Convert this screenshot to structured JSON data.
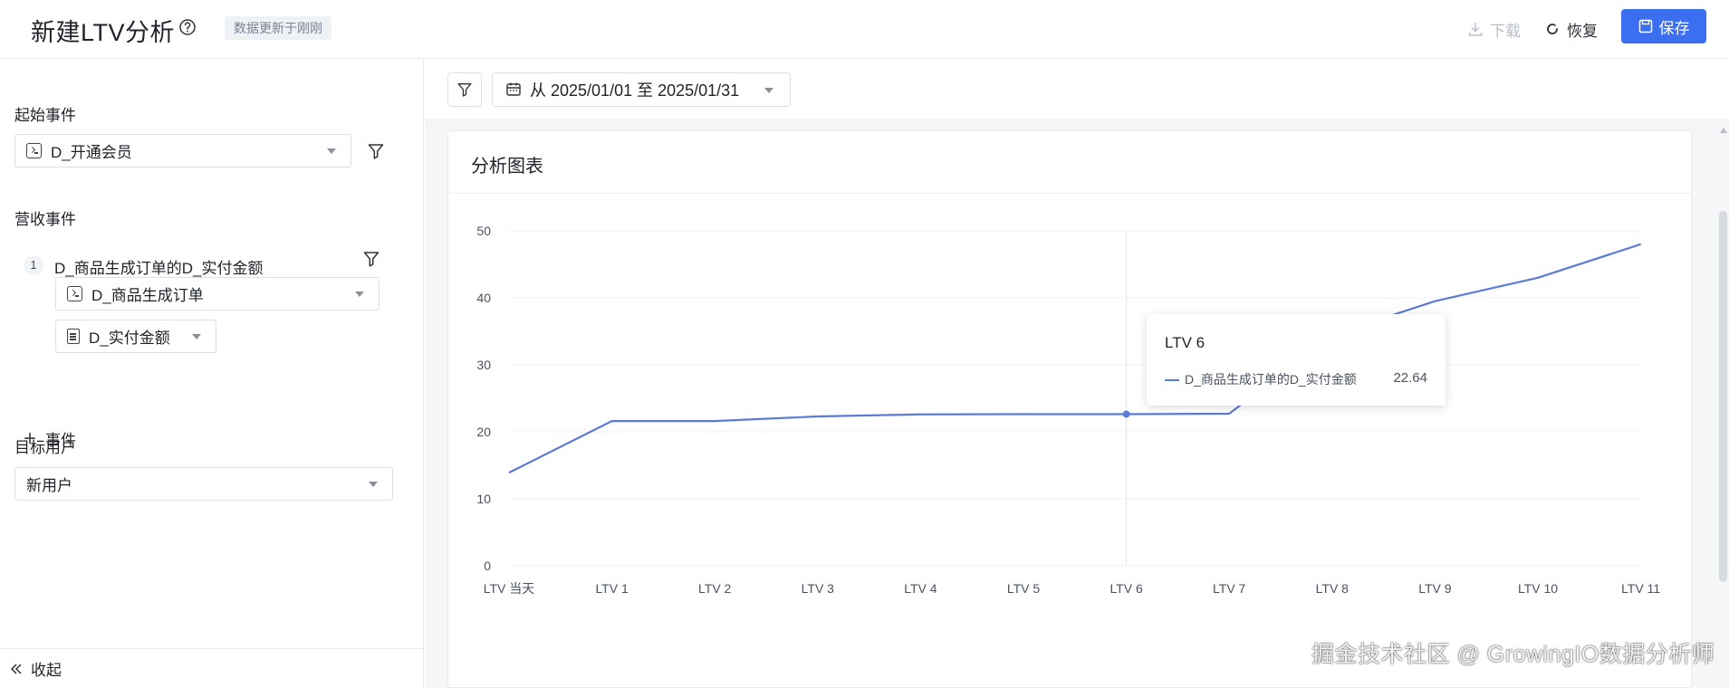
{
  "header": {
    "title": "新建LTV分析",
    "update_badge": "数据更新于刚刚",
    "download_label": "下载",
    "restore_label": "恢复",
    "save_label": "保存"
  },
  "sidebar": {
    "start_event_label": "起始事件",
    "start_event_value": "D_开通会员",
    "revenue_event_label": "营收事件",
    "revenue_metric_index": "1",
    "revenue_metric_name": "D_商品生成订单的D_实付金额",
    "revenue_event_value": "D_商品生成订单",
    "revenue_property_value": "D_实付金额",
    "add_event_label": "事件",
    "target_user_label": "目标用户",
    "target_user_value": "新用户",
    "collapse_label": "收起"
  },
  "toolbar": {
    "date_range": "从 2025/01/01 至 2025/01/31"
  },
  "card": {
    "title": "分析图表"
  },
  "tooltip": {
    "title": "LTV 6",
    "series_name": "D_商品生成订单的D_实付金额",
    "value": "22.64"
  },
  "watermark": "掘金技术社区 @ GrowingIO数据分析师",
  "colors": {
    "accent": "#3b6ff0",
    "series": "#5b7bd5",
    "grid": "#edf0f3"
  },
  "chart_data": {
    "type": "line",
    "categories": [
      "LTV 当天",
      "LTV 1",
      "LTV 2",
      "LTV 3",
      "LTV 4",
      "LTV 5",
      "LTV 6",
      "LTV 7",
      "LTV 8",
      "LTV 9",
      "LTV 10",
      "LTV 11"
    ],
    "series": [
      {
        "name": "D_商品生成订单的D_实付金额",
        "values": [
          13.9,
          21.6,
          21.6,
          22.3,
          22.6,
          22.64,
          22.64,
          22.7,
          34.5,
          39.5,
          43.0,
          48.0
        ]
      }
    ],
    "yticks": [
      0,
      10,
      20,
      30,
      40,
      50
    ],
    "ylim": [
      0,
      50
    ],
    "highlight_index": 6,
    "grid": true
  }
}
